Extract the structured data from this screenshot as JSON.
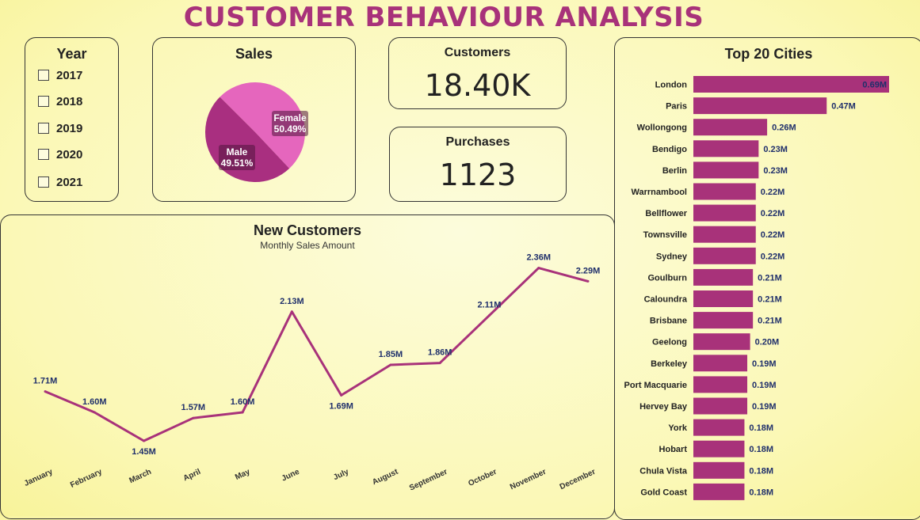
{
  "title": "CUSTOMER BEHAVIOUR ANALYSIS",
  "year_filter": {
    "title": "Year",
    "options": [
      "2017",
      "2018",
      "2019",
      "2020",
      "2021"
    ]
  },
  "kpis": {
    "customers": {
      "label": "Customers",
      "value": "18.40K"
    },
    "purchases": {
      "label": "Purchases",
      "value": "1123"
    }
  },
  "colors": {
    "accent": "#a8327a",
    "female": "#e566bd",
    "male": "#a92f80",
    "label_blue": "#1f2f6b"
  },
  "chart_data": [
    {
      "type": "pie",
      "title": "Sales",
      "slices": [
        {
          "name": "Female",
          "value": 50.49,
          "label": "50.49%"
        },
        {
          "name": "Male",
          "value": 49.51,
          "label": "49.51%"
        }
      ]
    },
    {
      "type": "line",
      "title": "New Customers",
      "subtitle": "Monthly Sales Amount",
      "categories": [
        "January",
        "February",
        "March",
        "April",
        "May",
        "June",
        "July",
        "August",
        "September",
        "October",
        "November",
        "December"
      ],
      "values": [
        1.71,
        1.6,
        1.45,
        1.57,
        1.6,
        2.13,
        1.69,
        1.85,
        1.86,
        2.11,
        2.36,
        2.29
      ],
      "labels": [
        "1.71M",
        "1.60M",
        "1.45M",
        "1.57M",
        "1.60M",
        "2.13M",
        "1.69M",
        "1.85M",
        "1.86M",
        "2.11M",
        "2.36M",
        "2.29M"
      ],
      "ylim": [
        1.0,
        2.5
      ]
    },
    {
      "type": "bar",
      "orientation": "horizontal",
      "title": "Top 20 Cities",
      "categories": [
        "London",
        "Paris",
        "Wollongong",
        "Bendigo",
        "Berlin",
        "Warrnambool",
        "Bellflower",
        "Townsville",
        "Sydney",
        "Goulburn",
        "Caloundra",
        "Brisbane",
        "Geelong",
        "Berkeley",
        "Port Macquarie",
        "Hervey Bay",
        "York",
        "Hobart",
        "Chula Vista",
        "Gold Coast"
      ],
      "values": [
        0.69,
        0.47,
        0.26,
        0.23,
        0.23,
        0.22,
        0.22,
        0.22,
        0.22,
        0.21,
        0.21,
        0.21,
        0.2,
        0.19,
        0.19,
        0.19,
        0.18,
        0.18,
        0.18,
        0.18
      ],
      "labels": [
        "0.69M",
        "0.47M",
        "0.26M",
        "0.23M",
        "0.23M",
        "0.22M",
        "0.22M",
        "0.22M",
        "0.22M",
        "0.21M",
        "0.21M",
        "0.21M",
        "0.20M",
        "0.19M",
        "0.19M",
        "0.19M",
        "0.18M",
        "0.18M",
        "0.18M",
        "0.18M"
      ],
      "xlim": [
        0,
        0.69
      ]
    }
  ]
}
